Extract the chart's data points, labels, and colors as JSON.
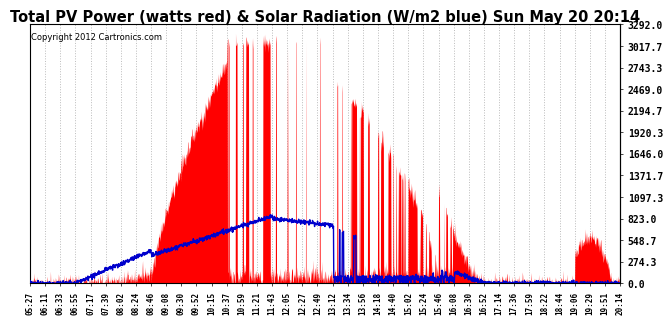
{
  "title": "Total PV Power (watts red) & Solar Radiation (W/m2 blue) Sun May 20 20:14",
  "copyright": "Copyright 2012 Cartronics.com",
  "y_ticks": [
    0.0,
    274.3,
    548.7,
    823.0,
    1097.3,
    1371.7,
    1646.0,
    1920.3,
    2194.7,
    2469.0,
    2743.3,
    3017.7,
    3292.0
  ],
  "x_labels": [
    "05:27",
    "06:11",
    "06:33",
    "06:55",
    "07:17",
    "07:39",
    "08:02",
    "08:24",
    "08:46",
    "09:08",
    "09:30",
    "09:52",
    "10:15",
    "10:37",
    "10:59",
    "11:21",
    "11:43",
    "12:05",
    "12:27",
    "12:49",
    "13:12",
    "13:34",
    "13:56",
    "14:18",
    "14:40",
    "15:02",
    "15:24",
    "15:46",
    "16:08",
    "16:30",
    "16:52",
    "17:14",
    "17:36",
    "17:59",
    "18:22",
    "18:44",
    "19:06",
    "19:29",
    "19:51",
    "20:14"
  ],
  "background_color": "#ffffff",
  "plot_bg_color": "#ffffff",
  "grid_color": "#bbbbbb",
  "title_fontsize": 10.5,
  "red_color": "#ff0000",
  "blue_color": "#0000cc",
  "ymax": 3292.0,
  "ymin": 0.0
}
